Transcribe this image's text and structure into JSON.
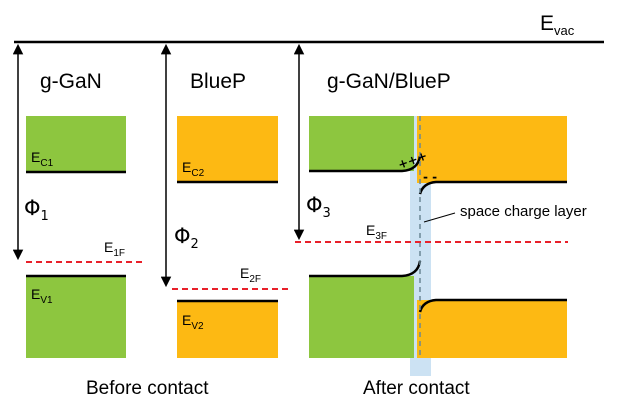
{
  "vacuum": {
    "label": "E",
    "sub": "vac"
  },
  "titles": {
    "left": "g-GaN",
    "middle": "BlueP",
    "right": "g-GaN/BlueP"
  },
  "captions": {
    "before": "Before contact",
    "after": "After contact"
  },
  "levels": {
    "ec1": {
      "main": "E",
      "sub": "C1"
    },
    "ev1": {
      "main": "E",
      "sub": "V1"
    },
    "e1f": {
      "main": "E",
      "sub": "1F"
    },
    "ec2": {
      "main": "E",
      "sub": "C2"
    },
    "ev2": {
      "main": "E",
      "sub": "V2"
    },
    "e2f": {
      "main": "E",
      "sub": "2F"
    },
    "e3f": {
      "main": "E",
      "sub": "3F"
    }
  },
  "work_functions": {
    "phi1": {
      "main": "Φ",
      "sub": "1"
    },
    "phi2": {
      "main": "Φ",
      "sub": "2"
    },
    "phi3": {
      "main": "Φ",
      "sub": "3"
    }
  },
  "annotation": {
    "space_charge": "space charge layer"
  },
  "charges": {
    "positive": "+++",
    "negative": "- -"
  },
  "colors": {
    "ggan": "#8dc63f",
    "bluep": "#fdb913",
    "fermi": "#e8202a",
    "interface": "#c7dff2",
    "line": "#000000"
  }
}
